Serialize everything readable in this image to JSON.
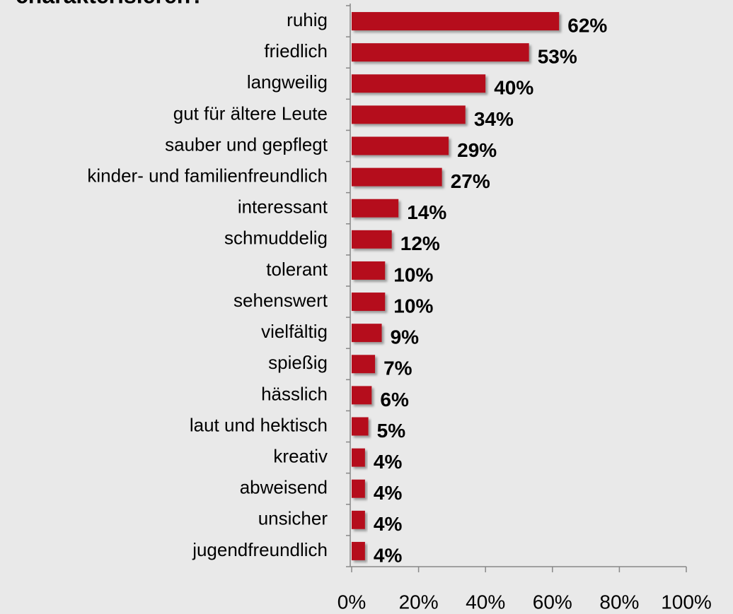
{
  "chart_data": {
    "type": "bar",
    "orientation": "horizontal",
    "title": "charakterisieren?",
    "categories": [
      "ruhig",
      "friedlich",
      "langweilig",
      "gut für ältere Leute",
      "sauber und gepflegt",
      "kinder- und familienfreundlich",
      "interessant",
      "schmuddelig",
      "tolerant",
      "sehenswert",
      "vielfältig",
      "spießig",
      "hässlich",
      "laut und hektisch",
      "kreativ",
      "abweisend",
      "unsicher",
      "jugendfreundlich"
    ],
    "values": [
      62,
      53,
      40,
      34,
      29,
      27,
      14,
      12,
      10,
      10,
      9,
      7,
      6,
      5,
      4,
      4,
      4,
      4
    ],
    "value_labels": [
      "62%",
      "53%",
      "40%",
      "34%",
      "29%",
      "27%",
      "14%",
      "12%",
      "10%",
      "10%",
      "9%",
      "7%",
      "6%",
      "5%",
      "4%",
      "4%",
      "4%",
      "4%"
    ],
    "color": "#b5081f",
    "xlim": [
      0,
      100
    ],
    "xticks": [
      {
        "value": 0,
        "label": "0%"
      },
      {
        "value": 20,
        "label": "20%"
      },
      {
        "value": 40,
        "label": "40%"
      },
      {
        "value": 60,
        "label": "60%"
      },
      {
        "value": 80,
        "label": "80%"
      },
      {
        "value": 100,
        "label": "100%"
      }
    ]
  }
}
